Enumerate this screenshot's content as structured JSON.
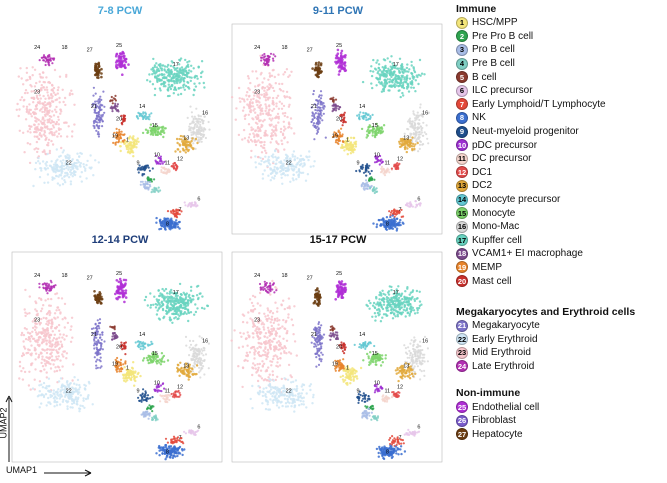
{
  "chart_data": {
    "type": "scatter",
    "subtype": "umap",
    "xlabel": "UMAP1",
    "ylabel": "UMAP2",
    "panels": [
      {
        "title": "7-8 PCW",
        "title_color": "#4aa8d8"
      },
      {
        "title": "9-11 PCW",
        "title_color": "#2f75b5"
      },
      {
        "title": "12-14 PCW",
        "title_color": "#1f3e7a"
      },
      {
        "title": "15-17 PCW",
        "title_color": "#111111"
      }
    ],
    "legend": [
      {
        "section": "Immune",
        "items": [
          {
            "id": "1",
            "label": "HSC/MPP",
            "color": "#f3e57a",
            "text": "#000"
          },
          {
            "id": "2",
            "label": "Pre Pro B cell",
            "color": "#2ea44f",
            "text": "#fff"
          },
          {
            "id": "3",
            "label": "Pro B cell",
            "color": "#a9bde6",
            "text": "#000"
          },
          {
            "id": "4",
            "label": "Pre B cell",
            "color": "#80cfc4",
            "text": "#000"
          },
          {
            "id": "5",
            "label": "B cell",
            "color": "#8b3a2f",
            "text": "#fff"
          },
          {
            "id": "6",
            "label": "ILC precursor",
            "color": "#e6c6ea",
            "text": "#000"
          },
          {
            "id": "7",
            "label": "Early Lymphoid/T Lymphocyte",
            "color": "#e3483a",
            "text": "#fff"
          },
          {
            "id": "8",
            "label": "NK",
            "color": "#3b6fd0",
            "text": "#fff"
          },
          {
            "id": "9",
            "label": "Neut-myeloid progenitor",
            "color": "#1f4e8c",
            "text": "#fff"
          },
          {
            "id": "10",
            "label": "pDC precursor",
            "color": "#9d2fd1",
            "text": "#fff"
          },
          {
            "id": "11",
            "label": "DC precursor",
            "color": "#f5d5cd",
            "text": "#000"
          },
          {
            "id": "12",
            "label": "DC1",
            "color": "#e34a4a",
            "text": "#fff"
          },
          {
            "id": "13",
            "label": "DC2",
            "color": "#e2a93c",
            "text": "#000"
          },
          {
            "id": "14",
            "label": "Monocyte precursor",
            "color": "#63c8d2",
            "text": "#000"
          },
          {
            "id": "15",
            "label": "Monocyte",
            "color": "#7dd36b",
            "text": "#000"
          },
          {
            "id": "16",
            "label": "Mono-Mac",
            "color": "#d9d9d9",
            "text": "#000"
          },
          {
            "id": "17",
            "label": "Kupffer cell",
            "color": "#69d3c0",
            "text": "#000"
          },
          {
            "id": "18",
            "label": "VCAM1+ EI macrophage",
            "color": "#7b4a8c",
            "text": "#fff"
          },
          {
            "id": "19",
            "label": "MEMP",
            "color": "#e8842b",
            "text": "#fff"
          },
          {
            "id": "20",
            "label": "Mast cell",
            "color": "#c9302c",
            "text": "#fff"
          }
        ]
      },
      {
        "section": "Megakaryocytes and Erythroid cells",
        "items": [
          {
            "id": "21",
            "label": "Megakaryocyte",
            "color": "#7d73c9",
            "text": "#fff"
          },
          {
            "id": "22",
            "label": "Early Erythroid",
            "color": "#cfe6f5",
            "text": "#000"
          },
          {
            "id": "23",
            "label": "Mid Erythroid",
            "color": "#f7c6cc",
            "text": "#000"
          },
          {
            "id": "24",
            "label": "Late Erythroid",
            "color": "#b32fb3",
            "text": "#fff"
          }
        ]
      },
      {
        "section": "Non-immune",
        "items": [
          {
            "id": "25",
            "label": "Endothelial cell",
            "color": "#b02fd6",
            "text": "#fff"
          },
          {
            "id": "26",
            "label": "Fibroblast",
            "color": "#7a5ccc",
            "text": "#fff"
          },
          {
            "id": "27",
            "label": "Hepatocyte",
            "color": "#6b3d12",
            "text": "#fff"
          }
        ]
      }
    ]
  }
}
